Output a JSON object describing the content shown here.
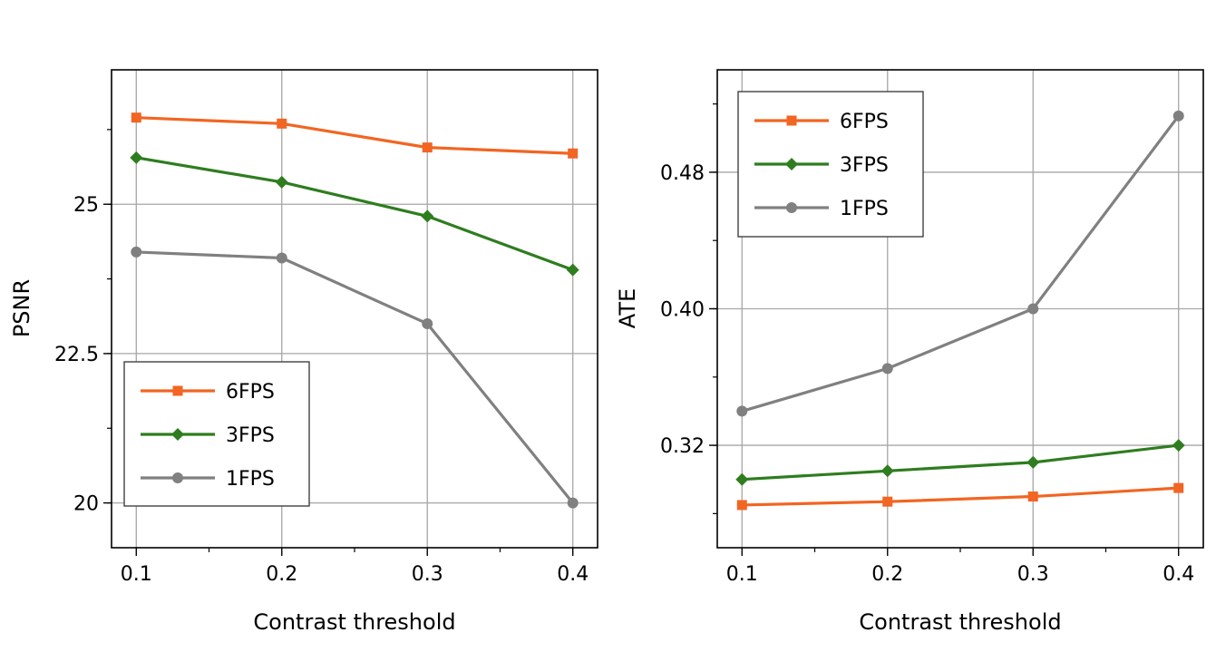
{
  "colors": {
    "6FPS": "#f26522",
    "3FPS": "#2e7d1f",
    "1FPS": "#808080"
  },
  "chart_data": [
    {
      "type": "line",
      "xlabel": "Contrast threshold",
      "ylabel": "PSNR",
      "x": [
        0.1,
        0.2,
        0.3,
        0.4
      ],
      "x_tick_labels": [
        "0.1",
        "0.2",
        "0.3",
        "0.4"
      ],
      "xlim": [
        0.083,
        0.417
      ],
      "ylim": [
        19.25,
        27.25
      ],
      "y_ticks": [
        20,
        22.5,
        25
      ],
      "y_tick_labels": [
        "20",
        "22.5",
        "25"
      ],
      "grid": true,
      "legend_position": "lower-left",
      "series": [
        {
          "name": "6FPS",
          "marker": "square",
          "values": [
            26.45,
            26.35,
            25.95,
            25.85
          ]
        },
        {
          "name": "3FPS",
          "marker": "diamond",
          "values": [
            25.78,
            25.37,
            24.8,
            23.9
          ]
        },
        {
          "name": "1FPS",
          "marker": "circle",
          "values": [
            24.2,
            24.1,
            23.0,
            20.0
          ]
        }
      ]
    },
    {
      "type": "line",
      "xlabel": "Contrast threshold",
      "ylabel": "ATE",
      "x": [
        0.1,
        0.2,
        0.3,
        0.4
      ],
      "x_tick_labels": [
        "0.1",
        "0.2",
        "0.3",
        "0.4"
      ],
      "xlim": [
        0.083,
        0.417
      ],
      "ylim": [
        0.26,
        0.54
      ],
      "y_ticks": [
        0.32,
        0.4,
        0.48
      ],
      "y_tick_labels": [
        "0.32",
        "0.40",
        "0.48"
      ],
      "grid": true,
      "legend_position": "top-left",
      "series": [
        {
          "name": "6FPS",
          "marker": "square",
          "values": [
            0.285,
            0.287,
            0.29,
            0.295
          ]
        },
        {
          "name": "3FPS",
          "marker": "diamond",
          "values": [
            0.3,
            0.305,
            0.31,
            0.32
          ]
        },
        {
          "name": "1FPS",
          "marker": "circle",
          "values": [
            0.34,
            0.365,
            0.4,
            0.513
          ]
        }
      ]
    }
  ]
}
